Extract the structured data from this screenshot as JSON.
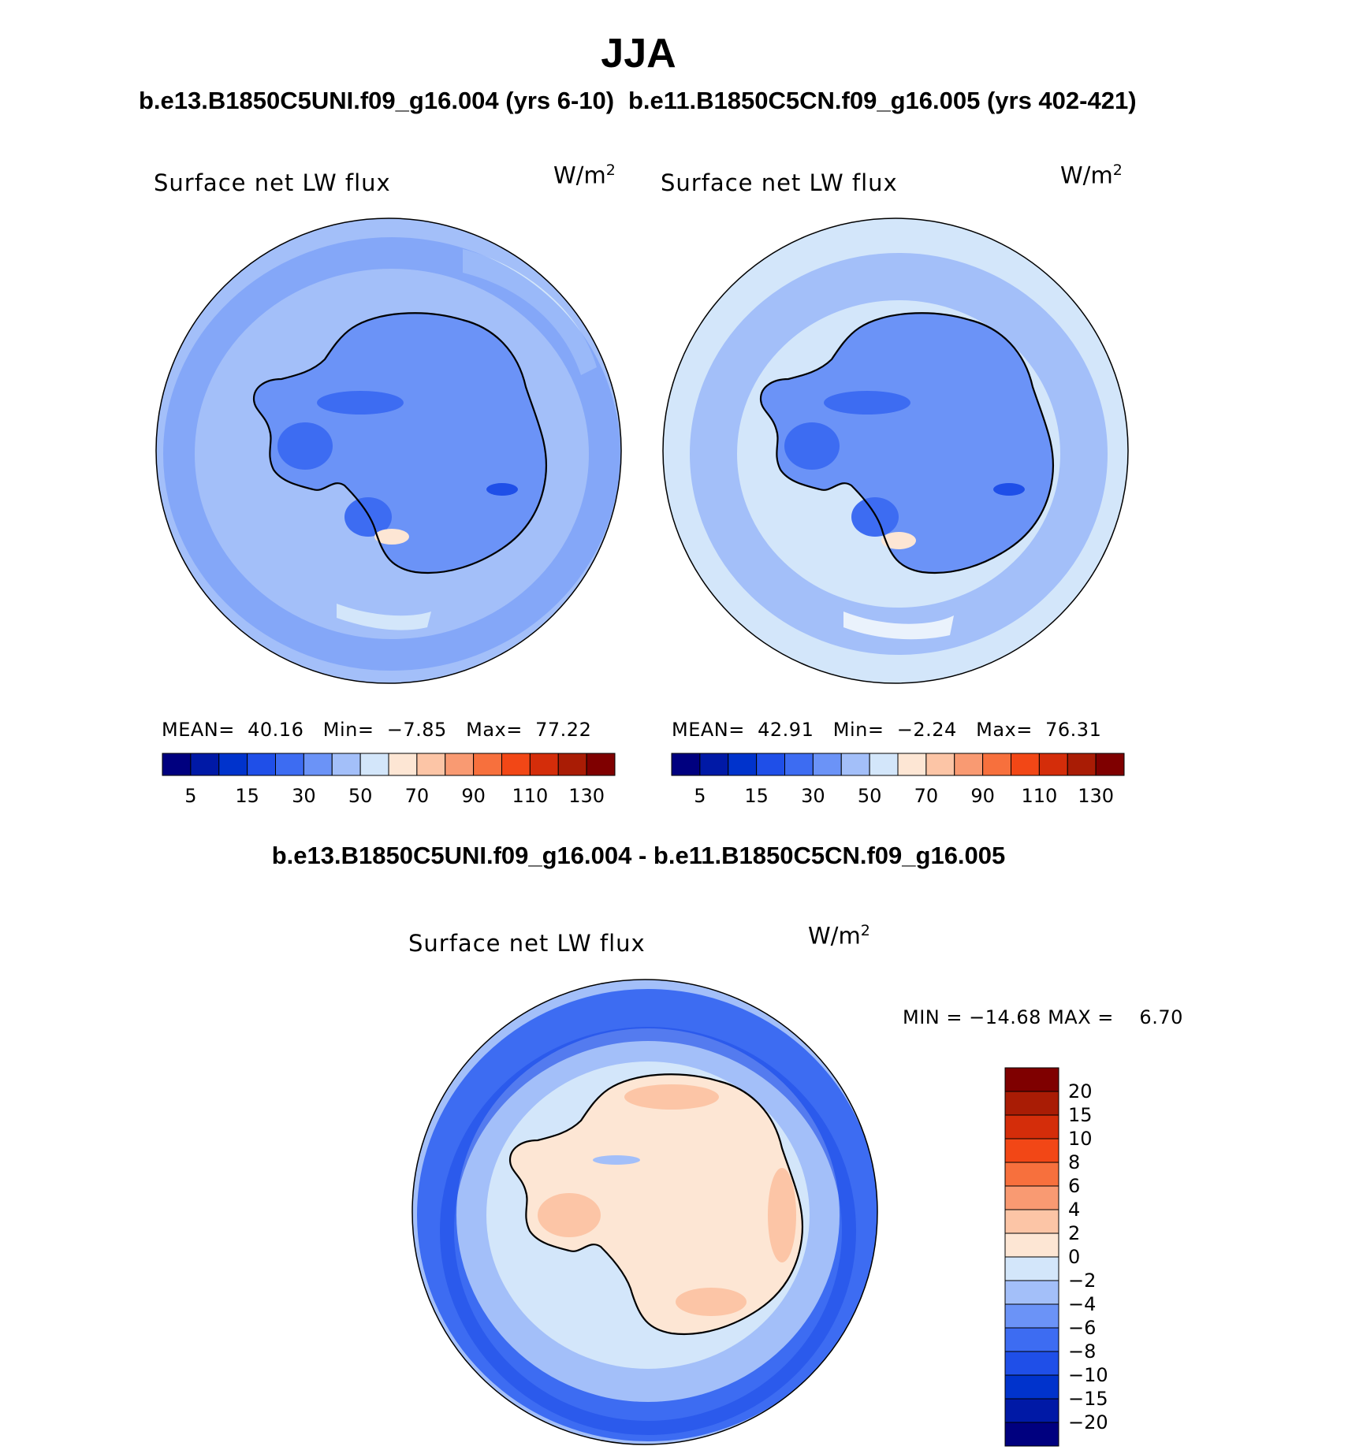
{
  "title": "JJA",
  "panels": [
    {
      "case_title": "b.e13.B1850C5UNI.f09_g16.004 (yrs 6-10)",
      "variable": "Surface net LW flux",
      "units_base": "W/m",
      "units_exp": "2",
      "stats": {
        "mean_label": "MEAN=",
        "mean": "40.16",
        "min_label": "Min=",
        "min": "−7.85",
        "max_label": "Max=",
        "max": "77.22"
      },
      "colorbar": {
        "colors": [
          "#00007f",
          "#0019a6",
          "#0033cc",
          "#1f4fe8",
          "#3d6cf2",
          "#6b93f7",
          "#a3bff9",
          "#d3e6fa",
          "#fde6d4",
          "#fcc5a6",
          "#f99a72",
          "#f7703d",
          "#f24716",
          "#d42d0a",
          "#a91c05",
          "#7f0000"
        ],
        "tick_labels": [
          "5",
          "15",
          "30",
          "50",
          "70",
          "90",
          "110",
          "130"
        ]
      }
    },
    {
      "case_title": "b.e11.B1850C5CN.f09_g16.005 (yrs 402-421)",
      "variable": "Surface net LW flux",
      "units_base": "W/m",
      "units_exp": "2",
      "stats": {
        "mean_label": "MEAN=",
        "mean": "42.91",
        "min_label": "Min=",
        "min": "−2.24",
        "max_label": "Max=",
        "max": "76.31"
      },
      "colorbar": {
        "colors": [
          "#00007f",
          "#0019a6",
          "#0033cc",
          "#1f4fe8",
          "#3d6cf2",
          "#6b93f7",
          "#a3bff9",
          "#d3e6fa",
          "#fde6d4",
          "#fcc5a6",
          "#f99a72",
          "#f7703d",
          "#f24716",
          "#d42d0a",
          "#a91c05",
          "#7f0000"
        ],
        "tick_labels": [
          "5",
          "15",
          "30",
          "50",
          "70",
          "90",
          "110",
          "130"
        ]
      }
    }
  ],
  "difference": {
    "title": "b.e13.B1850C5UNI.f09_g16.004 - b.e11.B1850C5CN.f09_g16.005",
    "variable": "Surface net LW flux",
    "units_base": "W/m",
    "units_exp": "2",
    "stats": {
      "min_label": "MIN =",
      "min": "−14.68",
      "max_label": "MAX =",
      "max": "6.70"
    },
    "colorbar": {
      "colors_top_to_bottom": [
        "#7f0000",
        "#a91c05",
        "#d42d0a",
        "#f24716",
        "#f7703d",
        "#f99a72",
        "#fcc5a6",
        "#fde6d4",
        "#d3e6fa",
        "#a3bff9",
        "#6b93f7",
        "#3d6cf2",
        "#1f4fe8",
        "#0033cc",
        "#0019a6",
        "#00007f"
      ],
      "tick_labels": [
        "20",
        "15",
        "10",
        "8",
        "6",
        "4",
        "2",
        "0",
        "−2",
        "−4",
        "−6",
        "−8",
        "−10",
        "−15",
        "−20"
      ]
    }
  },
  "map_colors": {
    "ocean_top": "#a3bff9",
    "ocean_light": "#d3e6fa",
    "ocean_mid": "#6b93f7",
    "land_top": "#6b93f7",
    "land_dark": "#3d6cf2",
    "land_darker": "#1f4fe8",
    "warm_spot": "#fde6d4",
    "diff_land": "#fde6d4",
    "diff_land_warm": "#fcc5a6",
    "diff_ocean_ring": "#3d6cf2",
    "diff_ocean_light": "#d3e6fa",
    "diff_ocean_mid": "#a3bff9",
    "diff_ocean_dark": "#1f4fe8"
  }
}
